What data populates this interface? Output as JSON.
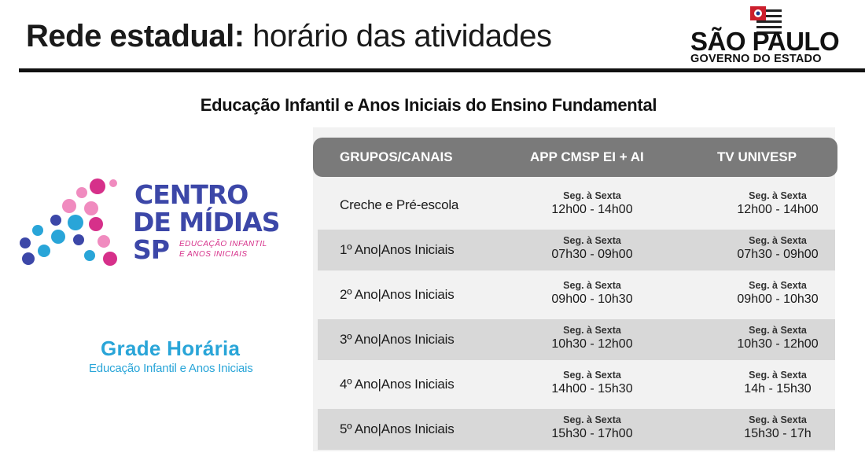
{
  "header": {
    "title_bold": "Rede estadual:",
    "title_light": "horário das atividades"
  },
  "logo_sp": {
    "name": "SÃO PAULO",
    "sub": "GOVERNO DO ESTADO"
  },
  "subtitle": "Educação Infantil e Anos Iniciais do Ensino Fundamental",
  "centro_midias": {
    "line1": "CENTRO",
    "line2": "DE MÍDIAS",
    "line3": "SP",
    "tag1": "EDUCAÇÃO INFANTIL",
    "tag2": "E ANOS INICIAIS",
    "colors": {
      "blue": "#3c47a8",
      "pink": "#d6308a",
      "light_pink": "#f08bbf",
      "light_blue": "#29a5d8"
    }
  },
  "grade": {
    "title": "Grade Horária",
    "subtitle": "Educação Infantil e Anos Iniciais"
  },
  "table": {
    "headers": [
      "GRUPOS/CANAIS",
      "APP CMSP EI + AI",
      "TV UNIVESP"
    ],
    "rows": [
      {
        "group": "Creche e Pré-escola",
        "app_day": "Seg. à Sexta",
        "app_time": "12h00 - 14h00",
        "tv_day": "Seg. à Sexta",
        "tv_time": "12h00 - 14h00"
      },
      {
        "group": "1º Ano|Anos Iniciais",
        "app_day": "Seg. à Sexta",
        "app_time": "07h30 - 09h00",
        "tv_day": "Seg. à Sexta",
        "tv_time": "07h30 - 09h00"
      },
      {
        "group": "2º Ano|Anos Iniciais",
        "app_day": "Seg. à Sexta",
        "app_time": "09h00 - 10h30",
        "tv_day": "Seg. à Sexta",
        "tv_time": "09h00 - 10h30"
      },
      {
        "group": "3º Ano|Anos Iniciais",
        "app_day": "Seg. à Sexta",
        "app_time": "10h30 - 12h00",
        "tv_day": "Seg. à Sexta",
        "tv_time": "10h30 - 12h00"
      },
      {
        "group": "4º Ano|Anos Iniciais",
        "app_day": "Seg. à Sexta",
        "app_time": "14h00 - 15h30",
        "tv_day": "Seg. à Sexta",
        "tv_time": "14h - 15h30"
      },
      {
        "group": "5º Ano|Anos Iniciais",
        "app_day": "Seg. à Sexta",
        "app_time": "15h30 - 17h00",
        "tv_day": "Seg. à Sexta",
        "tv_time": "15h30 - 17h"
      }
    ]
  }
}
